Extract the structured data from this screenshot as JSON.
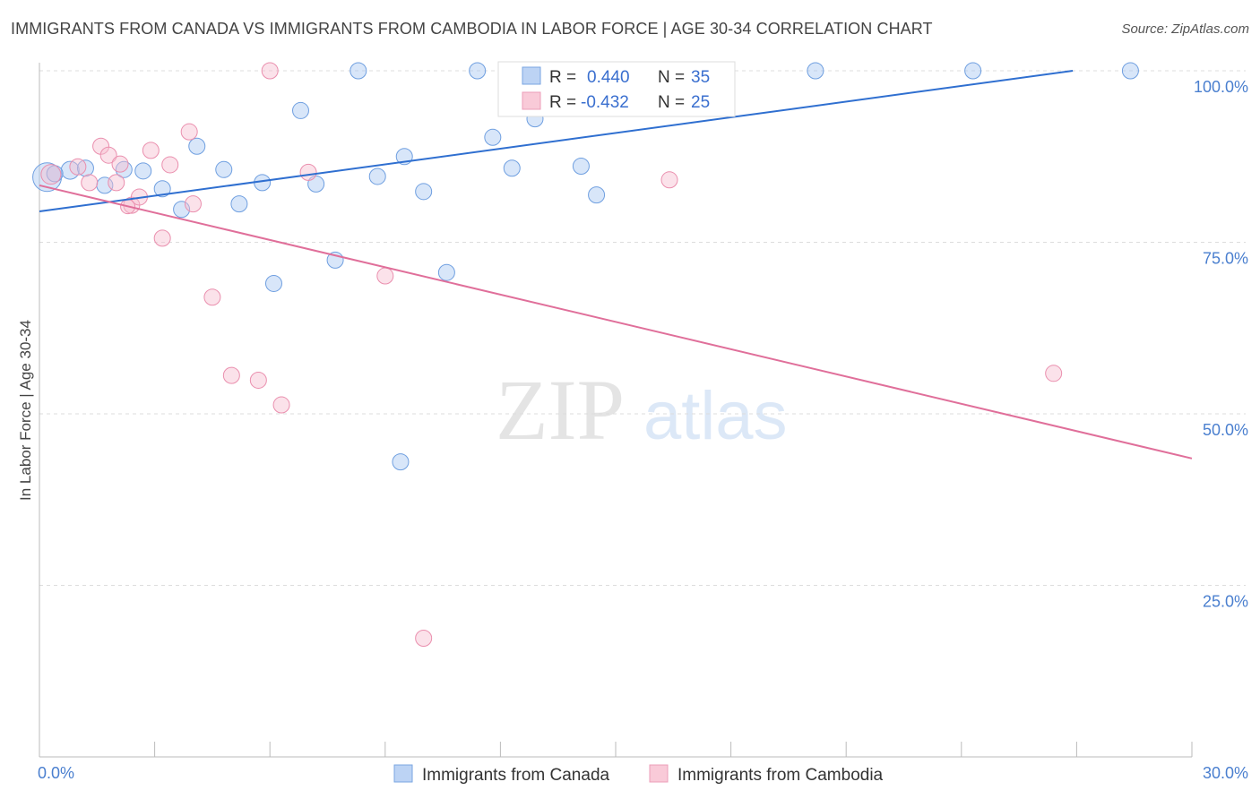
{
  "title": "IMMIGRANTS FROM CANADA VS IMMIGRANTS FROM CAMBODIA IN LABOR FORCE | AGE 30-34 CORRELATION CHART",
  "source": "Source: ZipAtlas.com",
  "watermark": {
    "zip": "ZIP",
    "atlas": "atlas"
  },
  "colors": {
    "canada": "#a9c7f1",
    "canada_stroke": "#6f9fe0",
    "canada_line": "#2f6fd0",
    "cambodia": "#f7bfd0",
    "cambodia_stroke": "#ea8fae",
    "cambodia_line": "#e06f9a",
    "tick_text": "#4a7fcf",
    "grid": "#dddddd"
  },
  "legend": {
    "rows": [
      {
        "r_label": "R =",
        "r_value": "0.440",
        "n_label": "N =",
        "n_value": "35"
      },
      {
        "r_label": "R =",
        "r_value": "-0.432",
        "n_label": "N =",
        "n_value": "25"
      }
    ]
  },
  "chart_data": {
    "type": "scatter",
    "xlabel": "",
    "ylabel": "In Labor Force | Age 30-34",
    "xlim": [
      0,
      30
    ],
    "ylim": [
      0,
      105
    ],
    "x_tick_labels": [
      "0.0%",
      "30.0%"
    ],
    "y_tick_labels": [
      "100.0%",
      "75.0%",
      "50.0%",
      "25.0%"
    ],
    "y_ticks": [
      100,
      75,
      50,
      25
    ],
    "grid": true,
    "legend_position": "bottom",
    "series": [
      {
        "name": "Immigrants from Canada",
        "color_key": "canada",
        "trend": {
          "x": [
            0,
            26.9
          ],
          "y": [
            79.5,
            100
          ]
        },
        "points": [
          {
            "x": 0.2,
            "y": 84.5,
            "size": 32
          },
          {
            "x": 0.8,
            "y": 85.5,
            "size": 20
          },
          {
            "x": 1.2,
            "y": 85.8,
            "size": 18
          },
          {
            "x": 1.7,
            "y": 83.3,
            "size": 18
          },
          {
            "x": 2.2,
            "y": 85.6,
            "size": 18
          },
          {
            "x": 2.7,
            "y": 85.4,
            "size": 18
          },
          {
            "x": 3.2,
            "y": 82.8,
            "size": 18
          },
          {
            "x": 3.7,
            "y": 79.8,
            "size": 18
          },
          {
            "x": 4.1,
            "y": 89.0,
            "size": 18
          },
          {
            "x": 4.8,
            "y": 85.6,
            "size": 18
          },
          {
            "x": 5.2,
            "y": 80.6,
            "size": 18
          },
          {
            "x": 5.8,
            "y": 83.7,
            "size": 18
          },
          {
            "x": 6.1,
            "y": 69.0,
            "size": 18
          },
          {
            "x": 6.8,
            "y": 94.2,
            "size": 18
          },
          {
            "x": 7.2,
            "y": 83.5,
            "size": 18
          },
          {
            "x": 7.7,
            "y": 72.4,
            "size": 18
          },
          {
            "x": 8.3,
            "y": 100.0,
            "size": 18
          },
          {
            "x": 8.8,
            "y": 84.6,
            "size": 18
          },
          {
            "x": 9.4,
            "y": 43.0,
            "size": 18
          },
          {
            "x": 9.5,
            "y": 87.5,
            "size": 18
          },
          {
            "x": 10.0,
            "y": 82.4,
            "size": 18
          },
          {
            "x": 10.6,
            "y": 70.6,
            "size": 18
          },
          {
            "x": 11.4,
            "y": 100.0,
            "size": 18
          },
          {
            "x": 11.8,
            "y": 90.3,
            "size": 18
          },
          {
            "x": 12.3,
            "y": 85.8,
            "size": 18
          },
          {
            "x": 12.9,
            "y": 93.0,
            "size": 18
          },
          {
            "x": 13.5,
            "y": 100.0,
            "size": 18
          },
          {
            "x": 14.1,
            "y": 86.1,
            "size": 18
          },
          {
            "x": 14.5,
            "y": 81.9,
            "size": 18
          },
          {
            "x": 15.2,
            "y": 100.0,
            "size": 18
          },
          {
            "x": 15.7,
            "y": 100.0,
            "size": 18
          },
          {
            "x": 20.2,
            "y": 100.0,
            "size": 18
          },
          {
            "x": 24.3,
            "y": 100.0,
            "size": 18
          },
          {
            "x": 28.4,
            "y": 100.0,
            "size": 18
          },
          {
            "x": 0.4,
            "y": 85.0,
            "size": 18
          }
        ]
      },
      {
        "name": "Immigrants from Cambodia",
        "color_key": "cambodia",
        "trend": {
          "x": [
            0,
            30
          ],
          "y": [
            83.3,
            43.5
          ]
        },
        "points": [
          {
            "x": 0.3,
            "y": 84.9,
            "size": 22
          },
          {
            "x": 1.0,
            "y": 86.0,
            "size": 18
          },
          {
            "x": 1.3,
            "y": 83.7,
            "size": 18
          },
          {
            "x": 1.6,
            "y": 89.0,
            "size": 18
          },
          {
            "x": 1.8,
            "y": 87.7,
            "size": 18
          },
          {
            "x": 2.0,
            "y": 83.7,
            "size": 18
          },
          {
            "x": 2.1,
            "y": 86.4,
            "size": 18
          },
          {
            "x": 2.4,
            "y": 80.4,
            "size": 18
          },
          {
            "x": 2.6,
            "y": 81.6,
            "size": 18
          },
          {
            "x": 2.9,
            "y": 88.4,
            "size": 18
          },
          {
            "x": 3.2,
            "y": 75.6,
            "size": 18
          },
          {
            "x": 3.4,
            "y": 86.3,
            "size": 18
          },
          {
            "x": 3.9,
            "y": 91.1,
            "size": 18
          },
          {
            "x": 4.0,
            "y": 80.6,
            "size": 18
          },
          {
            "x": 4.5,
            "y": 67.0,
            "size": 18
          },
          {
            "x": 5.0,
            "y": 55.6,
            "size": 18
          },
          {
            "x": 5.7,
            "y": 54.9,
            "size": 18
          },
          {
            "x": 6.0,
            "y": 100.0,
            "size": 18
          },
          {
            "x": 6.3,
            "y": 51.3,
            "size": 18
          },
          {
            "x": 7.0,
            "y": 85.2,
            "size": 18
          },
          {
            "x": 9.0,
            "y": 70.1,
            "size": 18
          },
          {
            "x": 10.0,
            "y": 17.3,
            "size": 18
          },
          {
            "x": 16.4,
            "y": 84.1,
            "size": 18
          },
          {
            "x": 26.4,
            "y": 55.9,
            "size": 18
          },
          {
            "x": 2.3,
            "y": 80.2,
            "size": 16
          }
        ]
      }
    ]
  }
}
